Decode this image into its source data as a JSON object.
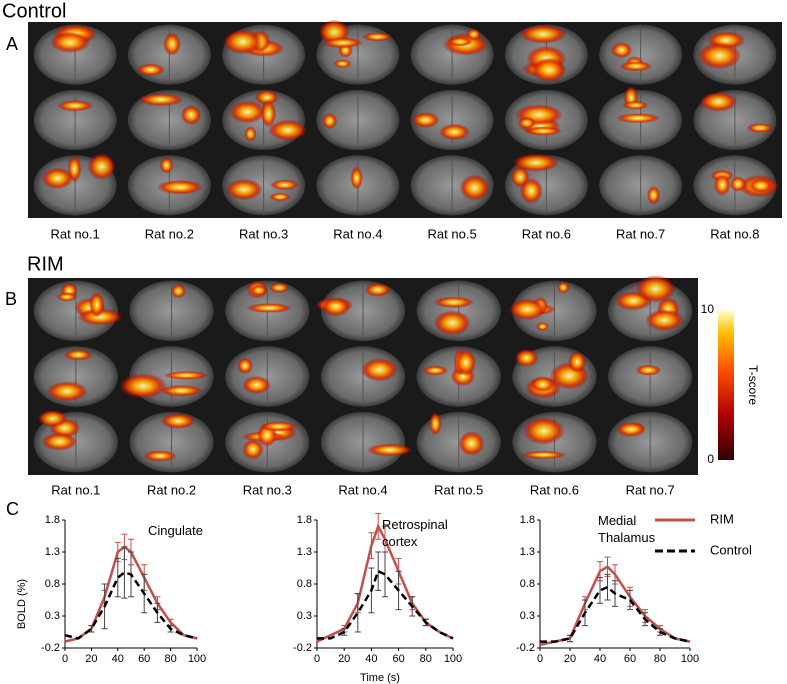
{
  "panels": [
    {
      "letter": "A",
      "title": "Control",
      "rats": [
        "Rat no.1",
        "Rat no.2",
        "Rat no.3",
        "Rat no.4",
        "Rat no.5",
        "Rat no.6",
        "Rat no.7",
        "Rat no.8"
      ]
    },
    {
      "letter": "B",
      "title": "RIM",
      "rats": [
        "Rat no.1",
        "Rat no.2",
        "Rat no.3",
        "Rat no.4",
        "Rat no.5",
        "Rat no.6",
        "Rat no.7"
      ]
    }
  ],
  "colorbar": {
    "label": "T-score",
    "lim": [
      0,
      10
    ],
    "ticks": [
      0,
      10
    ]
  },
  "panel_c": {
    "letter": "C"
  },
  "chart_data": [
    {
      "type": "line",
      "title": "Cingulate",
      "ylabel": "BOLD (%)",
      "x": [
        0,
        10,
        20,
        30,
        40,
        45,
        50,
        60,
        70,
        80,
        90,
        100
      ],
      "xlim": [
        0,
        100
      ],
      "xticks": [
        0,
        20,
        40,
        60,
        80,
        100
      ],
      "ylim": [
        -0.2,
        1.8
      ],
      "yticks": [
        -0.2,
        0.3,
        0.8,
        1.3,
        1.8
      ],
      "series": [
        {
          "name": "RIM",
          "color": "#c0504d",
          "style": "solid",
          "values": [
            -0.1,
            -0.05,
            0.1,
            0.6,
            1.3,
            1.38,
            1.3,
            0.9,
            0.5,
            0.2,
            0.0,
            -0.05
          ],
          "errors": [
            null,
            null,
            0.05,
            0.1,
            0.15,
            0.2,
            0.2,
            0.2,
            0.1,
            0.05,
            null,
            null
          ]
        },
        {
          "name": "Control",
          "color": "#000000",
          "style": "dashed",
          "values": [
            0.0,
            -0.05,
            0.1,
            0.45,
            0.9,
            0.98,
            0.95,
            0.65,
            0.35,
            0.1,
            0.0,
            -0.05
          ],
          "errors": [
            null,
            null,
            0.05,
            0.35,
            0.3,
            0.4,
            0.35,
            0.3,
            0.15,
            0.05,
            null,
            null
          ]
        }
      ]
    },
    {
      "type": "line",
      "title": "Retrospinal cortex",
      "xlabel": "Time (s)",
      "x": [
        0,
        10,
        20,
        30,
        40,
        45,
        50,
        60,
        70,
        80,
        90,
        100
      ],
      "xlim": [
        0,
        100
      ],
      "xticks": [
        0,
        20,
        40,
        60,
        80,
        100
      ],
      "ylim": [
        -0.2,
        1.8
      ],
      "yticks": [
        -0.2,
        0.3,
        0.8,
        1.3,
        1.8
      ],
      "series": [
        {
          "name": "RIM",
          "color": "#c0504d",
          "style": "solid",
          "values": [
            -0.1,
            0.0,
            0.1,
            0.5,
            1.4,
            1.7,
            1.5,
            1.0,
            0.5,
            0.2,
            0.05,
            -0.05
          ],
          "errors": [
            null,
            null,
            0.05,
            0.15,
            0.2,
            0.2,
            0.2,
            0.2,
            0.1,
            0.05,
            null,
            null
          ]
        },
        {
          "name": "Control",
          "color": "#000000",
          "style": "dashed",
          "values": [
            -0.05,
            -0.05,
            0.05,
            0.35,
            0.7,
            1.0,
            0.95,
            0.7,
            0.45,
            0.2,
            0.05,
            -0.05
          ],
          "errors": [
            null,
            null,
            0.05,
            0.3,
            0.35,
            0.3,
            0.35,
            0.3,
            0.15,
            0.05,
            null,
            null
          ]
        }
      ]
    },
    {
      "type": "line",
      "title": "Medial Thalamus",
      "x": [
        0,
        10,
        20,
        30,
        40,
        45,
        50,
        60,
        70,
        80,
        90,
        100
      ],
      "xlim": [
        0,
        100
      ],
      "xticks": [
        0,
        20,
        40,
        60,
        80,
        100
      ],
      "ylim": [
        -0.2,
        1.8
      ],
      "yticks": [
        -0.2,
        0.3,
        0.8,
        1.3,
        1.8
      ],
      "series": [
        {
          "name": "RIM",
          "color": "#c0504d",
          "style": "solid",
          "values": [
            -0.15,
            -0.1,
            -0.05,
            0.5,
            1.0,
            1.07,
            0.95,
            0.6,
            0.3,
            0.1,
            -0.05,
            -0.1
          ],
          "errors": [
            null,
            null,
            0.05,
            0.1,
            0.15,
            0.15,
            0.15,
            0.15,
            0.1,
            0.05,
            null,
            null
          ]
        },
        {
          "name": "Control",
          "color": "#000000",
          "style": "dashed",
          "values": [
            -0.1,
            -0.1,
            -0.05,
            0.35,
            0.7,
            0.75,
            0.65,
            0.55,
            0.25,
            0.05,
            -0.05,
            -0.1
          ],
          "errors": [
            null,
            null,
            0.05,
            0.2,
            0.2,
            0.2,
            0.2,
            0.15,
            0.1,
            0.05,
            null,
            null
          ]
        }
      ]
    }
  ]
}
